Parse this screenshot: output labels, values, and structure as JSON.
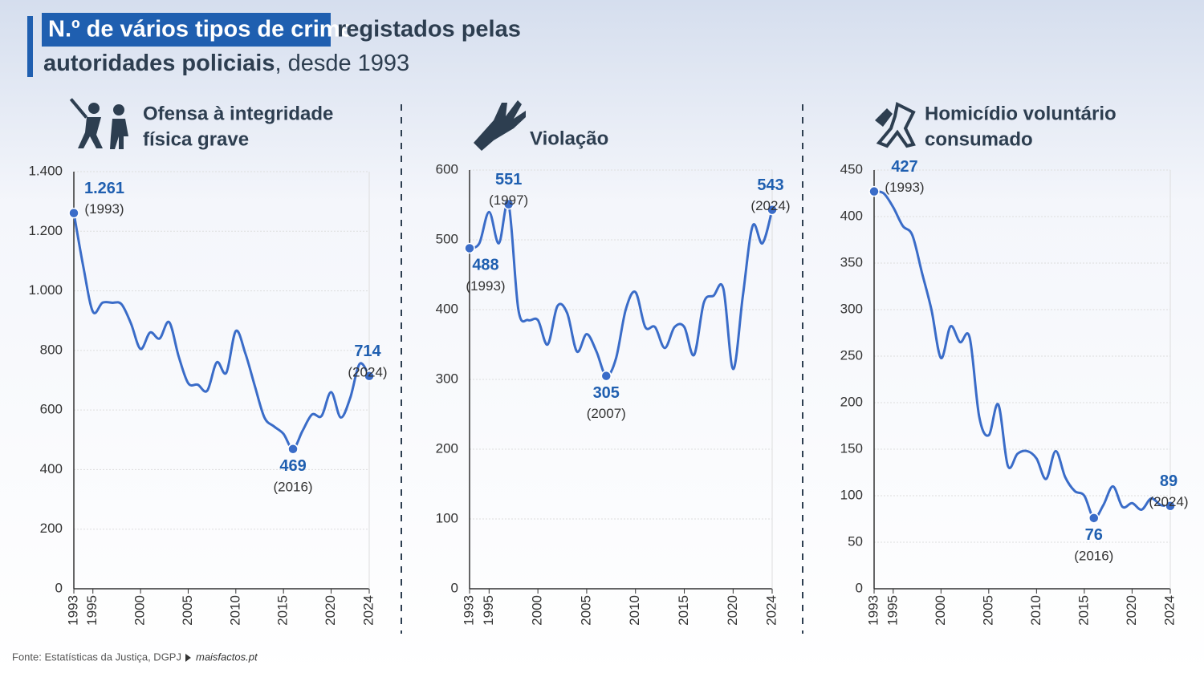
{
  "header": {
    "title_highlight": "N.º de vários tipos de crime",
    "title_rest": "registados pelas",
    "title_line2_bold": "autoridades policiais",
    "title_line2_rest": ", desde 1993"
  },
  "source": "Fonte: Estatísticas da Justiça, DGPJ",
  "site": "maisfactos.pt",
  "chart_data": [
    {
      "type": "line",
      "title": [
        "Ofensa à integridade",
        "física grave"
      ],
      "color": "#3a6cc8",
      "x": [
        1993,
        1994,
        1995,
        1996,
        1997,
        1998,
        1999,
        2000,
        2001,
        2002,
        2003,
        2004,
        2005,
        2006,
        2007,
        2008,
        2009,
        2010,
        2011,
        2012,
        2013,
        2014,
        2015,
        2016,
        2017,
        2018,
        2019,
        2020,
        2021,
        2022,
        2023,
        2024
      ],
      "values": [
        1261,
        1080,
        930,
        960,
        960,
        955,
        890,
        805,
        860,
        840,
        895,
        780,
        690,
        685,
        665,
        760,
        725,
        865,
        790,
        680,
        575,
        545,
        520,
        469,
        530,
        585,
        580,
        660,
        575,
        640,
        755,
        714
      ],
      "ylim": [
        0,
        1400
      ],
      "yticks": [
        0,
        200,
        400,
        600,
        800,
        {
          "value": 1000,
          "label": "1.000"
        },
        {
          "value": 1200,
          "label": "1.200"
        },
        {
          "value": 1400,
          "label": "1.400"
        }
      ],
      "xlim": [
        1993,
        2024
      ],
      "xticks": [
        1993,
        1995,
        2000,
        2005,
        2010,
        2015,
        2020,
        2024
      ],
      "grid": true,
      "annotations": [
        {
          "x": 1993,
          "label": "1.261",
          "year": "(1993)",
          "position": "above"
        },
        {
          "x": 2016,
          "label": "469",
          "year": "(2016)",
          "position": "below"
        },
        {
          "x": 2024,
          "label": "714",
          "year": "(2024)",
          "position": "above"
        }
      ]
    },
    {
      "type": "line",
      "title": [
        "Violação"
      ],
      "color": "#3a6cc8",
      "x": [
        1993,
        1994,
        1995,
        1996,
        1997,
        1998,
        1999,
        2000,
        2001,
        2002,
        2003,
        2004,
        2005,
        2006,
        2007,
        2008,
        2009,
        2010,
        2011,
        2012,
        2013,
        2014,
        2015,
        2016,
        2017,
        2018,
        2019,
        2020,
        2021,
        2022,
        2023,
        2024
      ],
      "values": [
        488,
        495,
        540,
        495,
        551,
        400,
        385,
        385,
        350,
        405,
        395,
        340,
        365,
        340,
        305,
        330,
        400,
        425,
        375,
        375,
        345,
        375,
        375,
        335,
        410,
        420,
        430,
        315,
        420,
        520,
        495,
        543
      ],
      "ylim": [
        0,
        600
      ],
      "yticks": [
        0,
        100,
        200,
        300,
        400,
        500,
        600
      ],
      "xlim": [
        1993,
        2024
      ],
      "xticks": [
        1993,
        1995,
        2000,
        2005,
        2010,
        2015,
        2020,
        2024
      ],
      "grid": true,
      "annotations": [
        {
          "x": 1993,
          "label": "488",
          "year": "(1993)",
          "position": "below"
        },
        {
          "x": 1997,
          "label": "551",
          "year": "(1997)",
          "position": "above"
        },
        {
          "x": 2007,
          "label": "305",
          "year": "(2007)",
          "position": "below"
        },
        {
          "x": 2024,
          "label": "543",
          "year": "(2024)",
          "position": "above"
        }
      ]
    },
    {
      "type": "line",
      "title": [
        "Homicídio voluntário",
        "consumado"
      ],
      "color": "#3a6cc8",
      "x": [
        1993,
        1994,
        1995,
        1996,
        1997,
        1998,
        1999,
        2000,
        2001,
        2002,
        2003,
        2004,
        2005,
        2006,
        2007,
        2008,
        2009,
        2010,
        2011,
        2012,
        2013,
        2014,
        2015,
        2016,
        2017,
        2018,
        2019,
        2020,
        2021,
        2022,
        2023,
        2024
      ],
      "values": [
        427,
        425,
        410,
        390,
        380,
        340,
        300,
        248,
        282,
        265,
        270,
        185,
        165,
        198,
        132,
        145,
        148,
        140,
        118,
        148,
        120,
        105,
        100,
        76,
        90,
        110,
        88,
        92,
        85,
        97,
        90,
        89
      ],
      "ylim": [
        0,
        450
      ],
      "yticks": [
        0,
        50,
        100,
        150,
        200,
        250,
        300,
        350,
        400,
        450
      ],
      "xlim": [
        1993,
        2024
      ],
      "xticks": [
        1993,
        1995,
        2000,
        2005,
        2010,
        2015,
        2020,
        2024
      ],
      "grid": true,
      "annotations": [
        {
          "x": 1993,
          "label": "427",
          "year": "(1993)",
          "position": "above"
        },
        {
          "x": 2016,
          "label": "76",
          "year": "(2016)",
          "position": "below"
        },
        {
          "x": 2024,
          "label": "89",
          "year": "(2024)",
          "position": "above"
        }
      ]
    }
  ]
}
